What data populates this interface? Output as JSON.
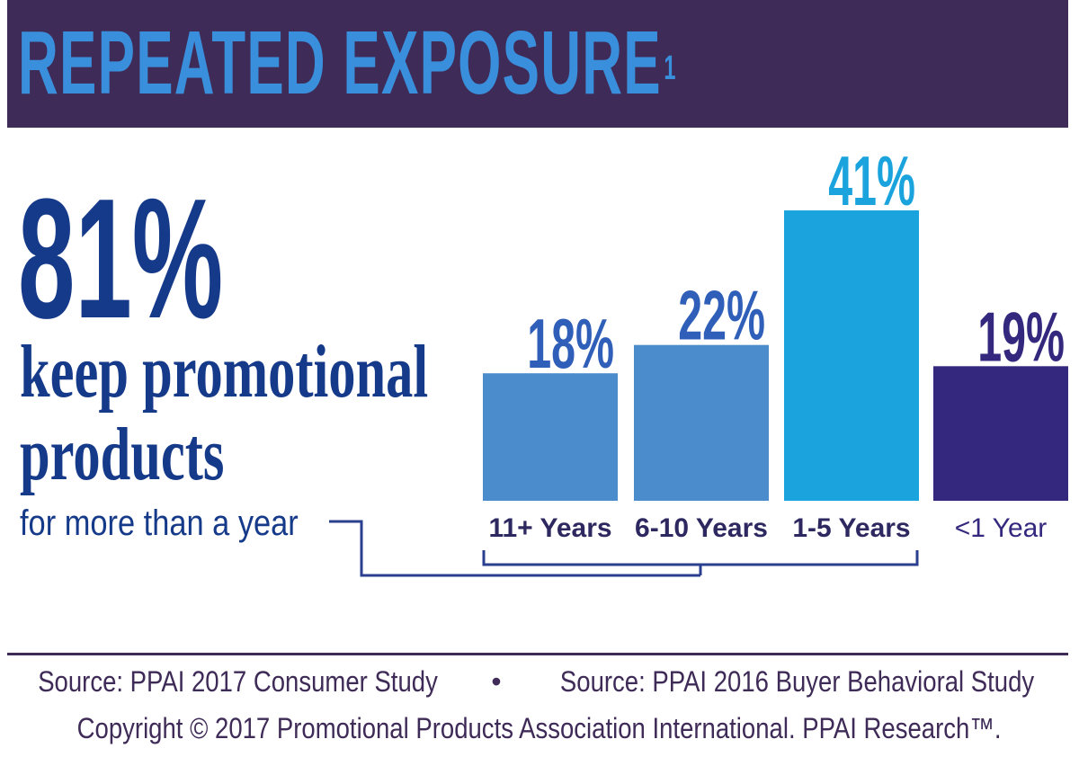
{
  "header": {
    "title": "REPEATED EXPOSURE",
    "footnote_mark": "1"
  },
  "headline": {
    "percent": "81%",
    "line1": "keep promotional",
    "line2": "products",
    "line3": "for more than a year"
  },
  "chart_data": {
    "type": "bar",
    "title": "",
    "xlabel": "",
    "ylabel": "",
    "ylim": [
      0,
      45
    ],
    "grid": false,
    "categories": [
      "11+ Years",
      "6-10 Years",
      "1-5 Years",
      "<1 Year"
    ],
    "values": [
      18,
      22,
      41,
      19
    ],
    "value_labels": [
      "18%",
      "22%",
      "41%",
      "19%"
    ],
    "colors": [
      "#4a8ccc",
      "#4a8ccc",
      "#1ba3dd",
      "#33287e"
    ],
    "label_colors": [
      "#2f5fb8",
      "#2f5fb8",
      "#1ba3dd",
      "#33287e"
    ],
    "bracket": "groups 11+ Years, 6-10 Years, 1-5 Years into the 81% headline"
  },
  "footer": {
    "source1": "Source: PPAI 2017 Consumer Study",
    "bullet": "•",
    "source2": "Source: PPAI 2016 Buyer Behavioral Study",
    "copyright": "Copyright © 2017 Promotional Products Association International. PPAI Research™."
  },
  "colors": {
    "header_bg": "#3f2b57",
    "title": "#3a8fdc",
    "headline": "#163a8a"
  }
}
